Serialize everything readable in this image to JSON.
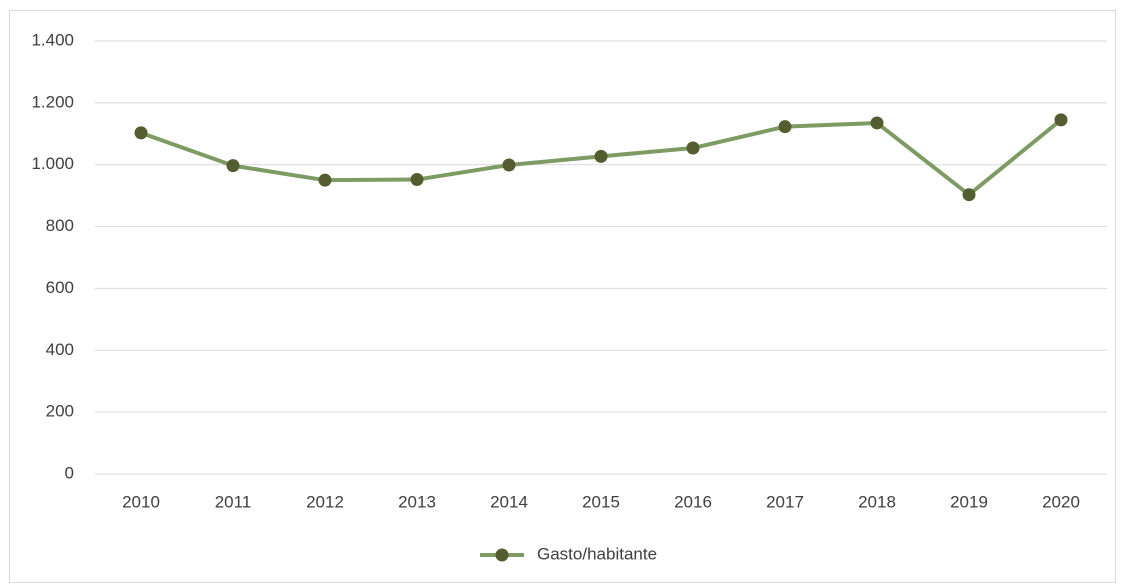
{
  "chart_data": {
    "type": "line",
    "categories": [
      "2010",
      "2011",
      "2012",
      "2013",
      "2014",
      "2015",
      "2016",
      "2017",
      "2018",
      "2019",
      "2020"
    ],
    "series": [
      {
        "name": "Gasto/habitante",
        "color": "#7e9b64",
        "marker_color": "#535d2f",
        "values": [
          1103,
          997,
          950,
          952,
          999,
          1027,
          1054,
          1123,
          1135,
          903,
          1145
        ]
      }
    ],
    "ylim": [
      0,
      1400
    ],
    "yticks": [
      0,
      200,
      400,
      600,
      800,
      {
        "value": 1000,
        "label": "1.000"
      },
      {
        "value": 1200,
        "label": "1.200"
      },
      {
        "value": 1400,
        "label": "1.400"
      }
    ],
    "grid": true,
    "legend": "bottom"
  }
}
